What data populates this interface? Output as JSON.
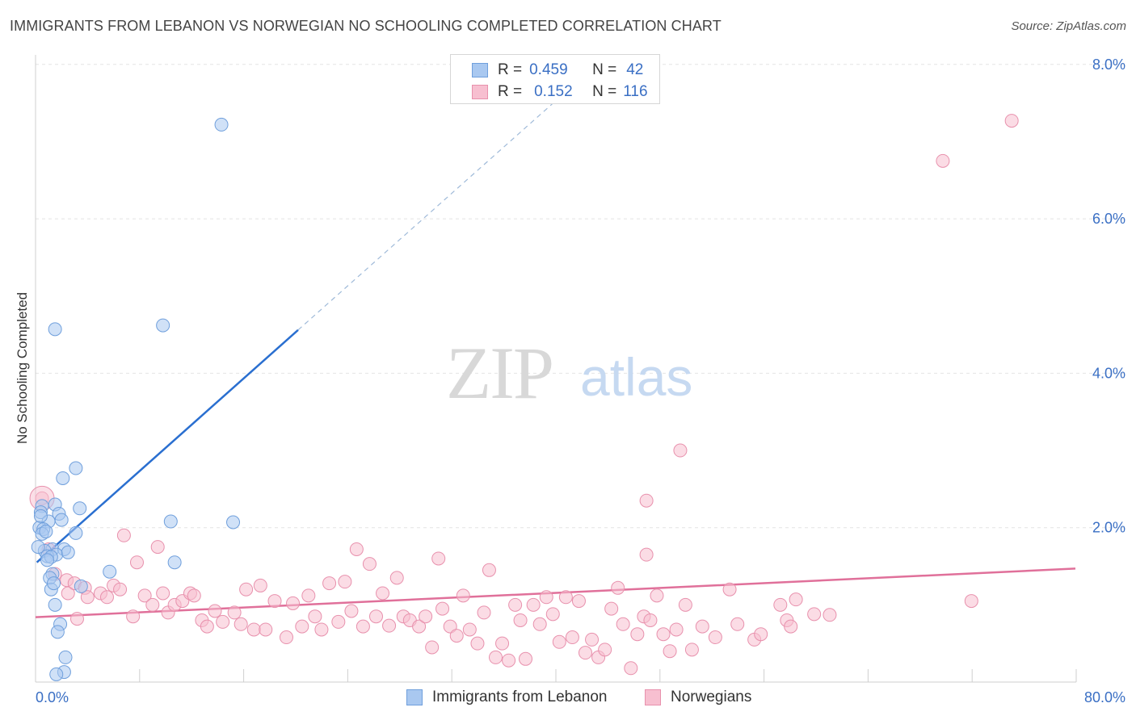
{
  "header": {
    "title": "IMMIGRANTS FROM LEBANON VS NORWEGIAN NO SCHOOLING COMPLETED CORRELATION CHART",
    "source": "Source: ZipAtlas.com"
  },
  "watermark": {
    "zip": "ZIP",
    "atlas": "atlas"
  },
  "legend": {
    "rows": [
      {
        "r_label": "R =",
        "r_value": "0.459",
        "n_label": "N =",
        "n_value": "42",
        "color": "#a9c8f0",
        "border": "#6f9fdc"
      },
      {
        "r_label": "R =",
        "r_value": "0.152",
        "n_label": "N =",
        "n_value": "116",
        "color": "#f7bfd0",
        "border": "#e891ad"
      }
    ]
  },
  "bottom_legend": {
    "items": [
      {
        "label": "Immigrants from Lebanon",
        "color": "#a9c8f0",
        "border": "#6f9fdc"
      },
      {
        "label": "Norwegians",
        "color": "#f7bfd0",
        "border": "#e891ad"
      }
    ]
  },
  "chart_data": {
    "type": "scatter",
    "title": "IMMIGRANTS FROM LEBANON VS NORWEGIAN NO SCHOOLING COMPLETED CORRELATION CHART",
    "xlabel": "",
    "ylabel": "No Schooling Completed",
    "xlim": [
      0,
      80
    ],
    "ylim": [
      0,
      8
    ],
    "x_tick_labels": [
      "0.0%",
      "80.0%"
    ],
    "y_ticks": [
      2,
      4,
      6,
      8
    ],
    "y_tick_labels": [
      "2.0%",
      "4.0%",
      "6.0%",
      "8.0%"
    ],
    "grid": true,
    "legend_position": "top-center",
    "series": [
      {
        "name": "Immigrants from Lebanon",
        "color": "#6f9fdc",
        "fill": "#a9c8f0",
        "trend_color": "#2a6fd0",
        "trend": {
          "x_start": 0.1,
          "y_start": 1.55,
          "x_solid_end": 20.2,
          "y_solid_end": 4.56,
          "x_dash_end": 42.5,
          "y_dash_end": 7.9
        },
        "points": [
          [
            14.3,
            7.22
          ],
          [
            1.5,
            4.57
          ],
          [
            9.8,
            4.62
          ],
          [
            3.1,
            2.77
          ],
          [
            2.1,
            2.64
          ],
          [
            0.5,
            2.28
          ],
          [
            1.5,
            2.3
          ],
          [
            3.4,
            2.25
          ],
          [
            0.4,
            2.2
          ],
          [
            1.8,
            2.18
          ],
          [
            2.0,
            2.1
          ],
          [
            1.0,
            2.08
          ],
          [
            10.4,
            2.08
          ],
          [
            15.2,
            2.07
          ],
          [
            0.3,
            2.0
          ],
          [
            0.6,
            1.98
          ],
          [
            0.5,
            1.92
          ],
          [
            3.1,
            1.93
          ],
          [
            1.3,
            1.72
          ],
          [
            2.2,
            1.72
          ],
          [
            0.7,
            1.7
          ],
          [
            1.6,
            1.65
          ],
          [
            0.9,
            1.63
          ],
          [
            1.2,
            1.62
          ],
          [
            10.7,
            1.55
          ],
          [
            5.7,
            1.43
          ],
          [
            1.3,
            1.4
          ],
          [
            1.1,
            1.35
          ],
          [
            3.5,
            1.24
          ],
          [
            1.2,
            1.2
          ],
          [
            1.5,
            1.0
          ],
          [
            1.9,
            0.75
          ],
          [
            1.7,
            0.65
          ],
          [
            2.3,
            0.32
          ],
          [
            2.2,
            0.13
          ],
          [
            1.6,
            0.1
          ],
          [
            0.4,
            2.15
          ],
          [
            0.8,
            1.95
          ],
          [
            2.5,
            1.68
          ],
          [
            0.2,
            1.75
          ],
          [
            1.4,
            1.28
          ],
          [
            0.9,
            1.58
          ]
        ]
      },
      {
        "name": "Norwegians",
        "color": "#e891ad",
        "fill": "#f7bfd0",
        "trend_color": "#e0709a",
        "trend": {
          "x_start": 0,
          "y_start": 0.84,
          "x_end": 80,
          "y_end": 1.47
        },
        "points": [
          [
            75.1,
            7.27
          ],
          [
            69.8,
            6.75
          ],
          [
            49.6,
            3.0
          ],
          [
            47.0,
            2.35
          ],
          [
            47.0,
            1.65
          ],
          [
            0.5,
            2.38
          ],
          [
            1.0,
            1.72
          ],
          [
            1.5,
            1.4
          ],
          [
            2.4,
            1.32
          ],
          [
            2.5,
            1.15
          ],
          [
            3.0,
            1.28
          ],
          [
            3.8,
            1.22
          ],
          [
            4.0,
            1.1
          ],
          [
            5.0,
            1.15
          ],
          [
            5.5,
            1.1
          ],
          [
            6.0,
            1.25
          ],
          [
            6.5,
            1.2
          ],
          [
            6.8,
            1.9
          ],
          [
            7.5,
            0.85
          ],
          [
            7.8,
            1.55
          ],
          [
            8.4,
            1.12
          ],
          [
            9.0,
            1.0
          ],
          [
            9.4,
            1.75
          ],
          [
            9.8,
            1.15
          ],
          [
            10.2,
            0.9
          ],
          [
            10.7,
            1.0
          ],
          [
            11.3,
            1.05
          ],
          [
            11.9,
            1.15
          ],
          [
            12.2,
            1.12
          ],
          [
            12.8,
            0.8
          ],
          [
            13.2,
            0.72
          ],
          [
            13.8,
            0.92
          ],
          [
            14.4,
            0.78
          ],
          [
            15.3,
            0.9
          ],
          [
            15.8,
            0.75
          ],
          [
            16.2,
            1.2
          ],
          [
            16.8,
            0.68
          ],
          [
            17.3,
            1.25
          ],
          [
            17.7,
            0.68
          ],
          [
            18.4,
            1.05
          ],
          [
            19.3,
            0.58
          ],
          [
            19.8,
            1.02
          ],
          [
            20.5,
            0.72
          ],
          [
            21.0,
            1.12
          ],
          [
            21.5,
            0.85
          ],
          [
            22.0,
            0.68
          ],
          [
            22.6,
            1.28
          ],
          [
            23.3,
            0.78
          ],
          [
            23.8,
            1.3
          ],
          [
            24.3,
            0.92
          ],
          [
            24.7,
            1.72
          ],
          [
            25.2,
            0.72
          ],
          [
            25.7,
            1.53
          ],
          [
            26.2,
            0.85
          ],
          [
            26.7,
            1.15
          ],
          [
            27.2,
            0.73
          ],
          [
            27.8,
            1.35
          ],
          [
            28.3,
            0.85
          ],
          [
            28.8,
            0.8
          ],
          [
            29.5,
            0.72
          ],
          [
            30.0,
            0.85
          ],
          [
            30.5,
            0.45
          ],
          [
            31.0,
            1.6
          ],
          [
            31.3,
            0.95
          ],
          [
            31.9,
            0.72
          ],
          [
            32.4,
            0.6
          ],
          [
            32.9,
            1.12
          ],
          [
            33.4,
            0.68
          ],
          [
            34.0,
            0.5
          ],
          [
            34.5,
            0.9
          ],
          [
            34.9,
            1.45
          ],
          [
            35.4,
            0.32
          ],
          [
            35.9,
            0.5
          ],
          [
            36.4,
            0.28
          ],
          [
            36.9,
            1.0
          ],
          [
            37.3,
            0.8
          ],
          [
            37.7,
            0.3
          ],
          [
            38.3,
            1.0
          ],
          [
            38.8,
            0.75
          ],
          [
            39.3,
            1.1
          ],
          [
            39.8,
            0.88
          ],
          [
            40.3,
            0.52
          ],
          [
            40.8,
            1.1
          ],
          [
            41.3,
            0.58
          ],
          [
            41.8,
            1.05
          ],
          [
            42.3,
            0.38
          ],
          [
            42.8,
            0.55
          ],
          [
            43.3,
            0.32
          ],
          [
            43.8,
            0.42
          ],
          [
            44.3,
            0.95
          ],
          [
            44.8,
            1.22
          ],
          [
            45.2,
            0.75
          ],
          [
            45.8,
            0.18
          ],
          [
            46.3,
            0.62
          ],
          [
            46.8,
            0.85
          ],
          [
            47.3,
            0.8
          ],
          [
            47.8,
            1.12
          ],
          [
            48.3,
            0.62
          ],
          [
            48.8,
            0.4
          ],
          [
            49.3,
            0.68
          ],
          [
            50.0,
            1.0
          ],
          [
            50.5,
            0.42
          ],
          [
            51.3,
            0.72
          ],
          [
            52.3,
            0.58
          ],
          [
            53.4,
            1.2
          ],
          [
            54.0,
            0.75
          ],
          [
            55.3,
            0.55
          ],
          [
            55.8,
            0.62
          ],
          [
            57.3,
            1.0
          ],
          [
            57.8,
            0.8
          ],
          [
            58.1,
            0.72
          ],
          [
            58.5,
            1.07
          ],
          [
            59.9,
            0.88
          ],
          [
            61.1,
            0.87
          ],
          [
            72.0,
            1.05
          ],
          [
            3.2,
            0.82
          ]
        ]
      }
    ]
  }
}
